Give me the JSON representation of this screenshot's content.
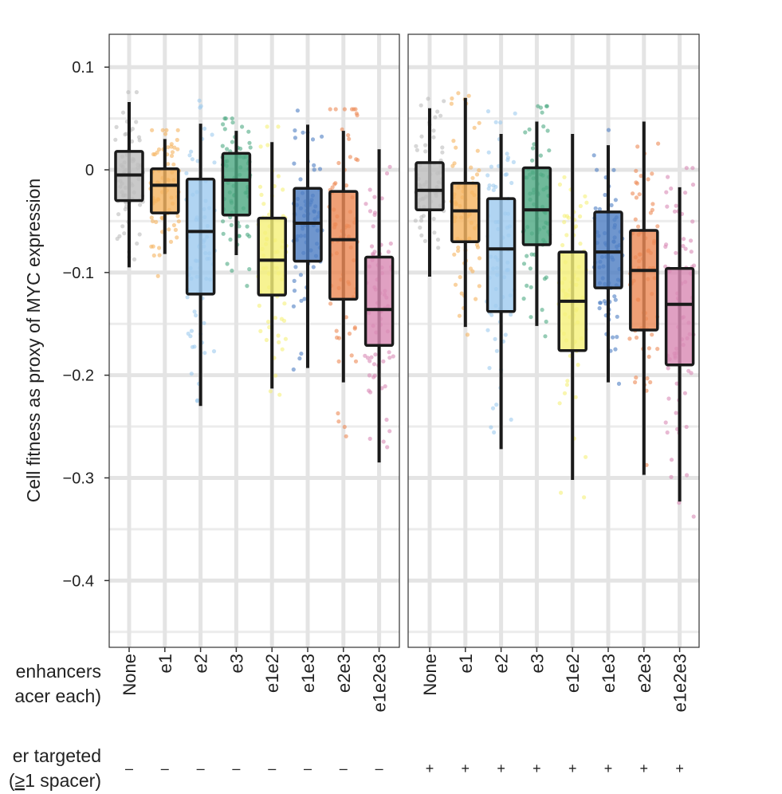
{
  "chart_data": {
    "type": "box",
    "ylabel": "Cell fitness as proxy of MYC expression",
    "ylim": [
      -0.465,
      0.132
    ],
    "yticks": [
      0.1,
      0,
      -0.1,
      -0.2,
      -0.3,
      -0.4
    ],
    "ytick_labels": [
      "0.1",
      "0",
      "−0.1",
      "−0.2",
      "−0.3",
      "−0.4"
    ],
    "grid": true,
    "row_labels": {
      "enhancers_line1": "enhancers",
      "enhancers_line2": "acer each)",
      "promoter_line1": "er targeted",
      "promoter_line2_prefix": "(",
      "promoter_line2_underlined": "≥",
      "promoter_line2_rest": "1 spacer)"
    },
    "categories": [
      "None",
      "e1",
      "e2",
      "e3",
      "e1e2",
      "e1e3",
      "e2e3",
      "e1e2e3"
    ],
    "colors": [
      "#bdbdbd",
      "#f5b461",
      "#9fcbef",
      "#4faa84",
      "#f5f07a",
      "#4f7fc3",
      "#ec8a57",
      "#d98bb5"
    ],
    "panels": [
      {
        "name": "promoter-not-targeted",
        "promoter_marker": "–",
        "boxes": [
          {
            "category": "None",
            "q1": -0.03,
            "median": -0.005,
            "q3": 0.018,
            "whislo": -0.095,
            "whishi": 0.066
          },
          {
            "category": "e1",
            "q1": -0.042,
            "median": -0.015,
            "q3": 0.001,
            "whislo": -0.082,
            "whishi": 0.03
          },
          {
            "category": "e2",
            "q1": -0.121,
            "median": -0.06,
            "q3": -0.009,
            "whislo": -0.23,
            "whishi": 0.045
          },
          {
            "category": "e3",
            "q1": -0.044,
            "median": -0.01,
            "q3": 0.016,
            "whislo": -0.083,
            "whishi": 0.038
          },
          {
            "category": "e1e2",
            "q1": -0.122,
            "median": -0.088,
            "q3": -0.047,
            "whislo": -0.213,
            "whishi": 0.027
          },
          {
            "category": "e1e3",
            "q1": -0.089,
            "median": -0.052,
            "q3": -0.018,
            "whislo": -0.193,
            "whishi": 0.044
          },
          {
            "category": "e2e3",
            "q1": -0.126,
            "median": -0.068,
            "q3": -0.021,
            "whislo": -0.207,
            "whishi": 0.038
          },
          {
            "category": "e1e2e3",
            "q1": -0.171,
            "median": -0.136,
            "q3": -0.085,
            "whislo": -0.285,
            "whishi": 0.02
          }
        ]
      },
      {
        "name": "promoter-targeted",
        "promoter_marker": "+",
        "boxes": [
          {
            "category": "None",
            "q1": -0.039,
            "median": -0.02,
            "q3": 0.007,
            "whislo": -0.104,
            "whishi": 0.06
          },
          {
            "category": "e1",
            "q1": -0.07,
            "median": -0.04,
            "q3": -0.013,
            "whislo": -0.153,
            "whishi": 0.07
          },
          {
            "category": "e2",
            "q1": -0.138,
            "median": -0.077,
            "q3": -0.028,
            "whislo": -0.272,
            "whishi": 0.035
          },
          {
            "category": "e3",
            "q1": -0.073,
            "median": -0.039,
            "q3": 0.002,
            "whislo": -0.152,
            "whishi": 0.047
          },
          {
            "category": "e1e2",
            "q1": -0.176,
            "median": -0.128,
            "q3": -0.08,
            "whislo": -0.302,
            "whishi": 0.035
          },
          {
            "category": "e1e3",
            "q1": -0.115,
            "median": -0.08,
            "q3": -0.041,
            "whislo": -0.207,
            "whishi": 0.024
          },
          {
            "category": "e2e3",
            "q1": -0.156,
            "median": -0.098,
            "q3": -0.059,
            "whislo": -0.297,
            "whishi": 0.047
          },
          {
            "category": "e1e2e3",
            "q1": -0.19,
            "median": -0.131,
            "q3": -0.096,
            "whislo": -0.323,
            "whishi": -0.017
          }
        ]
      }
    ]
  }
}
